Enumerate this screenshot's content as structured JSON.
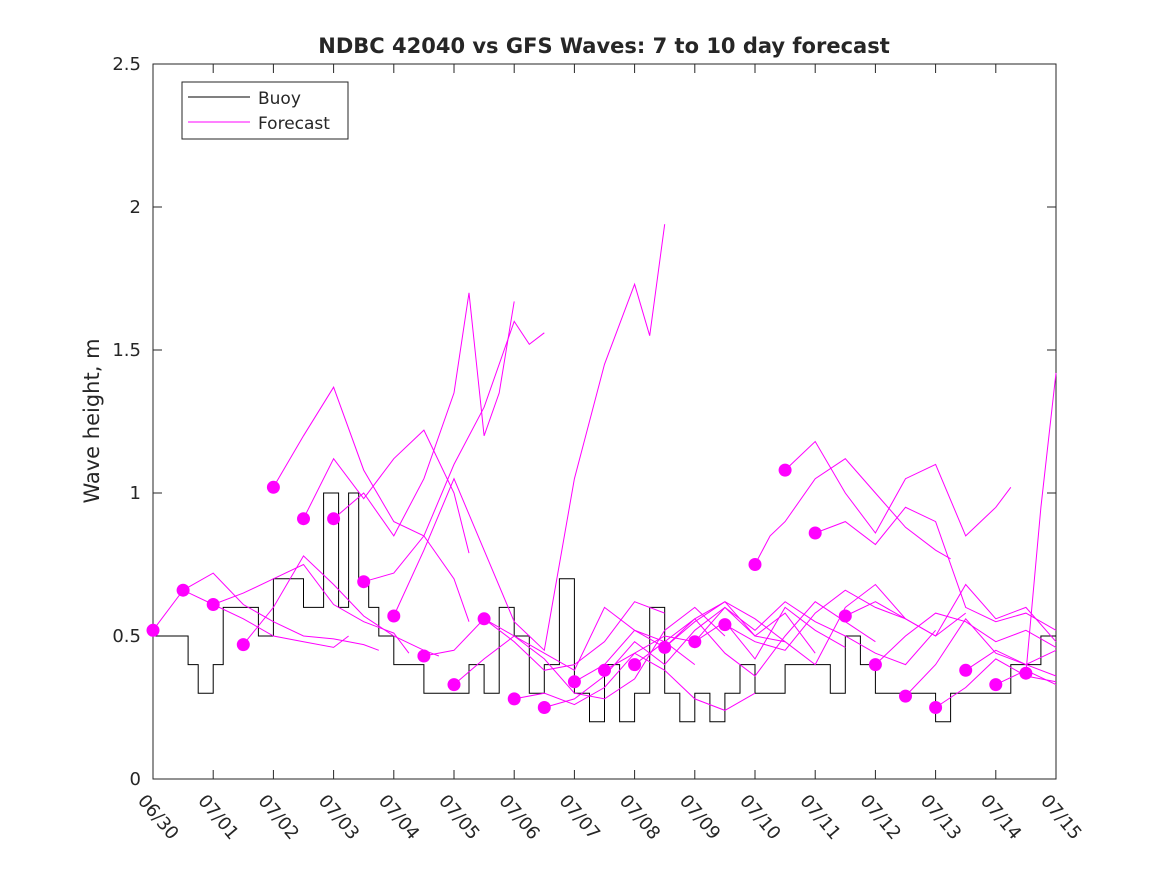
{
  "chart_data": {
    "type": "line",
    "title": "NDBC 42040 vs GFS Waves: 7 to 10 day forecast",
    "xlabel": "",
    "ylabel": "Wave height, m",
    "xlim": [
      "06/30",
      "07/15"
    ],
    "ylim": [
      0,
      2.5
    ],
    "yticks": [
      0,
      0.5,
      1,
      1.5,
      2,
      2.5
    ],
    "ytick_labels": [
      "0",
      "0.5",
      "1",
      "1.5",
      "2",
      "2.5"
    ],
    "xtick_labels": [
      "06/30",
      "07/01",
      "07/02",
      "07/03",
      "07/04",
      "07/05",
      "07/06",
      "07/07",
      "07/08",
      "07/09",
      "07/10",
      "07/11",
      "07/12",
      "07/13",
      "07/14",
      "07/15"
    ],
    "grid": false,
    "legend": {
      "location": "top-left",
      "entries": [
        {
          "label": "Buoy",
          "color": "#000000"
        },
        {
          "label": "Forecast",
          "color": "#ff00ff"
        }
      ]
    },
    "colors": {
      "buoy": "#000000",
      "forecast": "#ff00ff"
    },
    "buoy": {
      "name": "Buoy",
      "x": [
        "06/30 00:00",
        "06/30 10:00",
        "06/30 14:00",
        "06/30 18:00",
        "07/01 00:00",
        "07/01 04:00",
        "07/01 08:00",
        "07/01 12:00",
        "07/01 18:00",
        "07/02 00:00",
        "07/02 06:00",
        "07/02 12:00",
        "07/02 16:00",
        "07/02 20:00",
        "07/03 02:00",
        "07/03 06:00",
        "07/03 10:00",
        "07/03 14:00",
        "07/03 18:00",
        "07/04 00:00",
        "07/04 06:00",
        "07/04 12:00",
        "07/04 18:00",
        "07/05 00:00",
        "07/05 06:00",
        "07/05 12:00",
        "07/05 18:00",
        "07/06 00:00",
        "07/06 06:00",
        "07/06 12:00",
        "07/06 18:00",
        "07/07 00:00",
        "07/07 06:00",
        "07/07 12:00",
        "07/07 18:00",
        "07/08 00:00",
        "07/08 06:00",
        "07/08 12:00",
        "07/08 18:00",
        "07/09 00:00",
        "07/09 06:00",
        "07/09 12:00",
        "07/09 18:00",
        "07/10 00:00",
        "07/10 06:00",
        "07/10 12:00",
        "07/10 18:00",
        "07/11 00:00",
        "07/11 06:00",
        "07/11 12:00",
        "07/11 18:00",
        "07/12 00:00",
        "07/12 06:00",
        "07/12 12:00",
        "07/12 18:00",
        "07/13 00:00",
        "07/13 06:00",
        "07/13 12:00",
        "07/13 18:00",
        "07/14 00:00",
        "07/14 06:00",
        "07/14 12:00",
        "07/14 18:00",
        "07/15 00:00"
      ],
      "y": [
        0.5,
        0.5,
        0.4,
        0.3,
        0.4,
        0.6,
        0.6,
        0.6,
        0.5,
        0.7,
        0.7,
        0.6,
        0.6,
        1.0,
        0.6,
        1.0,
        0.7,
        0.6,
        0.5,
        0.4,
        0.4,
        0.3,
        0.3,
        0.3,
        0.4,
        0.3,
        0.6,
        0.5,
        0.3,
        0.4,
        0.7,
        0.3,
        0.2,
        0.4,
        0.2,
        0.3,
        0.6,
        0.3,
        0.2,
        0.3,
        0.2,
        0.3,
        0.4,
        0.3,
        0.3,
        0.4,
        0.4,
        0.4,
        0.3,
        0.5,
        0.4,
        0.3,
        0.3,
        0.3,
        0.3,
        0.2,
        0.3,
        0.3,
        0.3,
        0.3,
        0.4,
        0.4,
        0.5,
        0.5
      ]
    },
    "forecast_series": [
      {
        "x": [
          "06/30 00:00",
          "06/30 12:00",
          "07/01 00:00",
          "07/01 12:00",
          "07/02 00:00",
          "07/02 12:00",
          "07/03 00:00",
          "07/03 06:00"
        ],
        "y": [
          0.52,
          0.66,
          0.61,
          0.56,
          0.5,
          0.48,
          0.46,
          0.5
        ]
      },
      {
        "x": [
          "06/30 12:00",
          "07/01 00:00",
          "07/01 12:00",
          "07/02 00:00",
          "07/02 12:00",
          "07/03 00:00",
          "07/03 12:00",
          "07/03 18:00"
        ],
        "y": [
          0.66,
          0.72,
          0.61,
          0.55,
          0.5,
          0.49,
          0.47,
          0.45
        ]
      },
      {
        "x": [
          "07/01 00:00",
          "07/01 12:00",
          "07/02 00:00",
          "07/02 12:00",
          "07/03 00:00",
          "07/03 12:00",
          "07/04 00:00",
          "07/04 06:00"
        ],
        "y": [
          0.61,
          0.65,
          0.7,
          0.75,
          0.61,
          0.55,
          0.51,
          0.44
        ]
      },
      {
        "x": [
          "07/01 12:00",
          "07/02 00:00",
          "07/02 12:00",
          "07/03 00:00",
          "07/03 12:00",
          "07/04 00:00",
          "07/04 12:00",
          "07/04 18:00"
        ],
        "y": [
          0.47,
          0.6,
          0.78,
          0.68,
          0.57,
          0.5,
          0.45,
          0.43
        ]
      },
      {
        "x": [
          "07/02 00:00",
          "07/02 12:00",
          "07/03 00:00",
          "07/03 12:00",
          "07/04 00:00",
          "07/04 12:00",
          "07/05 00:00",
          "07/05 06:00"
        ],
        "y": [
          1.02,
          1.2,
          1.37,
          1.08,
          0.9,
          0.85,
          0.7,
          0.55
        ]
      },
      {
        "x": [
          "07/02 12:00",
          "07/03 00:00",
          "07/03 12:00",
          "07/04 00:00",
          "07/04 12:00",
          "07/05 00:00",
          "07/05 06:00"
        ],
        "y": [
          0.91,
          1.12,
          0.98,
          1.12,
          1.22,
          1.0,
          0.79
        ]
      },
      {
        "x": [
          "07/03 00:00",
          "07/03 12:00",
          "07/04 00:00",
          "07/04 12:00",
          "07/05 00:00",
          "07/05 06:00",
          "07/05 12:00",
          "07/05 18:00",
          "07/06 00:00"
        ],
        "y": [
          0.91,
          1.0,
          0.85,
          1.05,
          1.35,
          1.7,
          1.2,
          1.35,
          1.67
        ]
      },
      {
        "x": [
          "07/03 12:00",
          "07/04 00:00",
          "07/04 12:00",
          "07/05 00:00",
          "07/05 12:00",
          "07/06 00:00",
          "07/06 06:00",
          "07/06 12:00"
        ],
        "y": [
          0.69,
          0.72,
          0.85,
          1.1,
          1.3,
          1.6,
          1.52,
          1.56
        ]
      },
      {
        "x": [
          "07/04 00:00",
          "07/04 12:00",
          "07/05 00:00",
          "07/05 12:00",
          "07/06 00:00",
          "07/06 12:00",
          "07/07 00:00",
          "07/07 12:00",
          "07/08 00:00",
          "07/08 06:00",
          "07/08 12:00"
        ],
        "y": [
          0.57,
          0.8,
          1.05,
          0.8,
          0.55,
          0.45,
          1.05,
          1.45,
          1.73,
          1.55,
          1.94
        ]
      },
      {
        "x": [
          "07/04 12:00",
          "07/05 00:00",
          "07/05 12:00",
          "07/06 00:00",
          "07/06 12:00",
          "07/07 00:00",
          "07/07 12:00",
          "07/08 00:00",
          "07/08 12:00"
        ],
        "y": [
          0.43,
          0.45,
          0.56,
          0.48,
          0.38,
          0.4,
          0.48,
          0.62,
          0.58
        ]
      },
      {
        "x": [
          "07/05 00:00",
          "07/05 12:00",
          "07/06 00:00",
          "07/06 12:00",
          "07/07 00:00",
          "07/07 12:00",
          "07/08 00:00",
          "07/08 12:00",
          "07/09 00:00"
        ],
        "y": [
          0.33,
          0.42,
          0.5,
          0.44,
          0.38,
          0.6,
          0.52,
          0.48,
          0.4
        ]
      },
      {
        "x": [
          "07/05 12:00",
          "07/06 00:00",
          "07/06 12:00",
          "07/07 00:00",
          "07/07 12:00",
          "07/08 00:00",
          "07/08 12:00",
          "07/09 00:00",
          "07/09 12:00"
        ],
        "y": [
          0.56,
          0.5,
          0.42,
          0.3,
          0.28,
          0.35,
          0.52,
          0.6,
          0.5
        ]
      },
      {
        "x": [
          "07/06 00:00",
          "07/06 12:00",
          "07/07 00:00",
          "07/07 12:00",
          "07/08 00:00",
          "07/08 12:00",
          "07/09 00:00",
          "07/09 12:00",
          "07/10 00:00"
        ],
        "y": [
          0.28,
          0.3,
          0.26,
          0.32,
          0.44,
          0.38,
          0.28,
          0.24,
          0.3
        ]
      },
      {
        "x": [
          "07/06 12:00",
          "07/07 00:00",
          "07/07 12:00",
          "07/08 00:00",
          "07/08 12:00",
          "07/09 00:00",
          "07/09 12:00",
          "07/10 00:00",
          "07/10 12:00"
        ],
        "y": [
          0.25,
          0.28,
          0.36,
          0.48,
          0.4,
          0.52,
          0.6,
          0.5,
          0.48
        ]
      },
      {
        "x": [
          "07/07 00:00",
          "07/07 12:00",
          "07/08 00:00",
          "07/08 12:00",
          "07/09 00:00",
          "07/09 12:00",
          "07/10 00:00",
          "07/10 12:00",
          "07/11 00:00"
        ],
        "y": [
          0.34,
          0.4,
          0.52,
          0.46,
          0.56,
          0.62,
          0.5,
          0.58,
          0.44
        ]
      },
      {
        "x": [
          "07/07 12:00",
          "07/08 00:00",
          "07/08 12:00",
          "07/09 00:00",
          "07/09 12:00",
          "07/10 00:00",
          "07/10 12:00",
          "07/11 00:00",
          "07/11 12:00"
        ],
        "y": [
          0.38,
          0.44,
          0.5,
          0.48,
          0.55,
          0.42,
          0.6,
          0.52,
          0.46
        ]
      },
      {
        "x": [
          "07/08 00:00",
          "07/08 12:00",
          "07/09 00:00",
          "07/09 12:00",
          "07/10 00:00",
          "07/10 12:00",
          "07/11 00:00",
          "07/11 12:00",
          "07/12 00:00"
        ],
        "y": [
          0.4,
          0.48,
          0.56,
          0.44,
          0.36,
          0.5,
          0.62,
          0.55,
          0.48
        ]
      },
      {
        "x": [
          "07/08 12:00",
          "07/09 00:00",
          "07/09 12:00",
          "07/10 00:00",
          "07/10 12:00",
          "07/11 00:00",
          "07/11 12:00",
          "07/12 00:00",
          "07/12 12:00"
        ],
        "y": [
          0.46,
          0.55,
          0.62,
          0.56,
          0.48,
          0.4,
          0.6,
          0.68,
          0.56
        ]
      },
      {
        "x": [
          "07/09 00:00",
          "07/09 12:00",
          "07/10 00:00",
          "07/10 12:00",
          "07/11 00:00",
          "07/11 12:00",
          "07/12 00:00",
          "07/12 12:00",
          "07/13 00:00"
        ],
        "y": [
          0.48,
          0.6,
          0.52,
          0.62,
          0.55,
          0.5,
          0.44,
          0.4,
          0.52
        ]
      },
      {
        "x": [
          "07/09 12:00",
          "07/10 00:00",
          "07/10 12:00",
          "07/11 00:00",
          "07/11 12:00",
          "07/12 00:00",
          "07/12 12:00",
          "07/13 00:00",
          "07/13 12:00"
        ],
        "y": [
          0.54,
          0.48,
          0.45,
          0.58,
          0.66,
          0.6,
          0.56,
          0.5,
          0.58
        ]
      },
      {
        "x": [
          "07/10 00:00",
          "07/10 06:00",
          "07/10 12:00",
          "07/11 00:00",
          "07/11 12:00",
          "07/12 00:00",
          "07/12 12:00",
          "07/13 00:00",
          "07/13 06:00"
        ],
        "y": [
          0.75,
          0.85,
          0.9,
          1.05,
          1.12,
          1.0,
          0.88,
          0.8,
          0.77
        ]
      },
      {
        "x": [
          "07/10 12:00",
          "07/11 00:00",
          "07/11 12:00",
          "07/12 00:00",
          "07/12 12:00",
          "07/13 00:00",
          "07/13 12:00",
          "07/14 00:00",
          "07/14 06:00"
        ],
        "y": [
          1.08,
          1.18,
          1.0,
          0.86,
          1.05,
          1.1,
          0.85,
          0.95,
          1.02
        ]
      },
      {
        "x": [
          "07/11 00:00",
          "07/11 12:00",
          "07/12 00:00",
          "07/12 12:00",
          "07/13 00:00",
          "07/13 12:00",
          "07/14 00:00",
          "07/14 12:00",
          "07/15 00:00"
        ],
        "y": [
          0.86,
          0.9,
          0.82,
          0.95,
          0.9,
          0.6,
          0.55,
          0.58,
          0.52
        ]
      },
      {
        "x": [
          "07/11 12:00",
          "07/12 00:00",
          "07/12 12:00",
          "07/13 00:00",
          "07/13 12:00",
          "07/14 00:00",
          "07/14 12:00",
          "07/15 00:00"
        ],
        "y": [
          0.57,
          0.62,
          0.56,
          0.5,
          0.68,
          0.56,
          0.6,
          0.48
        ]
      },
      {
        "x": [
          "07/12 00:00",
          "07/12 12:00",
          "07/13 00:00",
          "07/13 12:00",
          "07/14 00:00",
          "07/14 12:00",
          "07/15 00:00"
        ],
        "y": [
          0.4,
          0.5,
          0.58,
          0.55,
          0.48,
          0.52,
          0.46
        ]
      },
      {
        "x": [
          "07/12 12:00",
          "07/13 00:00",
          "07/13 12:00",
          "07/14 00:00",
          "07/14 12:00",
          "07/15 00:00"
        ],
        "y": [
          0.29,
          0.4,
          0.56,
          0.44,
          0.4,
          0.45
        ]
      },
      {
        "x": [
          "07/13 00:00",
          "07/13 12:00",
          "07/14 00:00",
          "07/14 12:00",
          "07/15 00:00"
        ],
        "y": [
          0.25,
          0.32,
          0.42,
          0.36,
          0.34
        ]
      },
      {
        "x": [
          "07/13 12:00",
          "07/14 00:00",
          "07/14 12:00",
          "07/15 00:00"
        ],
        "y": [
          0.38,
          0.45,
          0.4,
          0.36
        ]
      },
      {
        "x": [
          "07/14 00:00",
          "07/14 12:00",
          "07/15 00:00"
        ],
        "y": [
          0.33,
          0.38,
          0.33
        ]
      },
      {
        "x": [
          "07/14 12:00",
          "07/14 18:00",
          "07/15 00:00"
        ],
        "y": [
          0.37,
          0.95,
          1.42
        ]
      }
    ],
    "forecast_markers": {
      "x": [
        "06/30 00:00",
        "06/30 12:00",
        "07/01 00:00",
        "07/01 12:00",
        "07/02 00:00",
        "07/02 12:00",
        "07/03 00:00",
        "07/03 12:00",
        "07/04 00:00",
        "07/04 12:00",
        "07/05 00:00",
        "07/05 12:00",
        "07/06 00:00",
        "07/06 12:00",
        "07/07 00:00",
        "07/07 12:00",
        "07/08 00:00",
        "07/08 12:00",
        "07/09 00:00",
        "07/09 12:00",
        "07/10 00:00",
        "07/10 12:00",
        "07/11 00:00",
        "07/11 12:00",
        "07/12 00:00",
        "07/12 12:00",
        "07/13 00:00",
        "07/13 12:00",
        "07/14 00:00",
        "07/14 12:00"
      ],
      "y": [
        0.52,
        0.66,
        0.61,
        0.47,
        1.02,
        0.91,
        0.91,
        0.69,
        0.57,
        0.43,
        0.33,
        0.56,
        0.28,
        0.25,
        0.34,
        0.38,
        0.4,
        0.46,
        0.48,
        0.54,
        0.75,
        1.08,
        0.86,
        0.57,
        0.4,
        0.29,
        0.25,
        0.38,
        0.33,
        0.37
      ]
    }
  }
}
